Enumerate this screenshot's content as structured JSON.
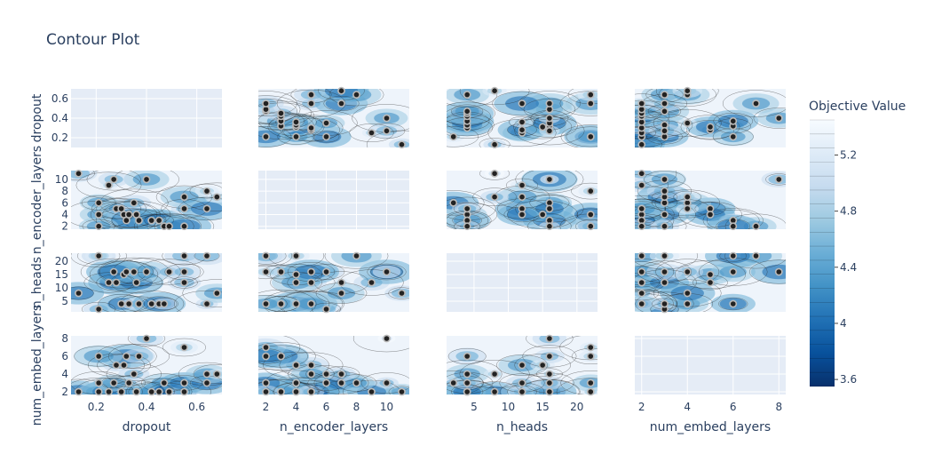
{
  "chart_data": {
    "type": "contour",
    "title": "Contour Plot",
    "colorbar": {
      "title": "Objective Value",
      "range": [
        3.55,
        5.45
      ],
      "ticks": [
        3.6,
        4,
        4.4,
        4.8,
        5.2
      ],
      "tick_labels": [
        "3.6",
        "4",
        "4.4",
        "4.8",
        "5.2"
      ],
      "colorscale": [
        "#08306b",
        "#08519c",
        "#2171b5",
        "#4292c6",
        "#6baed6",
        "#9ecae1",
        "#c6dbef",
        "#deebf7",
        "#f7fbff"
      ]
    },
    "params": [
      {
        "name": "dropout",
        "range": [
          0.1,
          0.7
        ],
        "ticks": [
          0.2,
          0.4,
          0.6
        ],
        "tick_labels": [
          "0.2",
          "0.4",
          "0.6"
        ],
        "y_ticks": [
          0.2,
          0.4,
          0.6
        ],
        "y_tick_labels": [
          "0.2",
          "0.4",
          "0.6"
        ]
      },
      {
        "name": "n_encoder_layers",
        "range": [
          1.5,
          11.5
        ],
        "ticks": [
          2,
          4,
          6,
          8,
          10
        ],
        "tick_labels": [
          "2",
          "4",
          "6",
          "8",
          "10"
        ],
        "y_ticks": [
          2,
          4,
          6,
          8,
          10
        ],
        "y_tick_labels": [
          "2",
          "4",
          "6",
          "8",
          "10"
        ]
      },
      {
        "name": "n_heads",
        "range": [
          1,
          23
        ],
        "ticks": [
          5,
          10,
          15,
          20
        ],
        "tick_labels": [
          "5",
          "10",
          "15",
          "20"
        ],
        "y_ticks": [
          5,
          10,
          15,
          20
        ],
        "y_tick_labels": [
          "5",
          "10",
          "15",
          "20"
        ]
      },
      {
        "name": "num_embed_layers",
        "range": [
          1.7,
          8.3
        ],
        "ticks": [
          2,
          4,
          6,
          8
        ],
        "tick_labels": [
          "2",
          "4",
          "6",
          "8"
        ],
        "y_ticks": [
          2,
          4,
          6,
          8
        ],
        "y_tick_labels": [
          "2",
          "4",
          "6",
          "8"
        ]
      }
    ],
    "trials": [
      {
        "dropout": 0.13,
        "n_encoder_layers": 11,
        "n_heads": 8,
        "num_embed_layers": 2
      },
      {
        "dropout": 0.21,
        "n_encoder_layers": 6,
        "n_heads": 2,
        "num_embed_layers": 3
      },
      {
        "dropout": 0.21,
        "n_encoder_layers": 4,
        "n_heads": 22,
        "num_embed_layers": 2
      },
      {
        "dropout": 0.25,
        "n_encoder_layers": 9,
        "n_heads": 12,
        "num_embed_layers": 2
      },
      {
        "dropout": 0.28,
        "n_encoder_layers": 5,
        "n_heads": 12,
        "num_embed_layers": 5
      },
      {
        "dropout": 0.3,
        "n_encoder_layers": 5,
        "n_heads": 4,
        "num_embed_layers": 2
      },
      {
        "dropout": 0.31,
        "n_encoder_layers": 4,
        "n_heads": 15,
        "num_embed_layers": 5
      },
      {
        "dropout": 0.32,
        "n_encoder_layers": 3,
        "n_heads": 16,
        "num_embed_layers": 6
      },
      {
        "dropout": 0.33,
        "n_encoder_layers": 4,
        "n_heads": 4,
        "num_embed_layers": 3
      },
      {
        "dropout": 0.35,
        "n_encoder_layers": 6,
        "n_heads": 16,
        "num_embed_layers": 4
      },
      {
        "dropout": 0.36,
        "n_encoder_layers": 4,
        "n_heads": 12,
        "num_embed_layers": 2
      },
      {
        "dropout": 0.37,
        "n_encoder_layers": 3,
        "n_heads": 4,
        "num_embed_layers": 6
      },
      {
        "dropout": 0.4,
        "n_encoder_layers": 10,
        "n_heads": 16,
        "num_embed_layers": 8
      },
      {
        "dropout": 0.42,
        "n_encoder_layers": 3,
        "n_heads": 4,
        "num_embed_layers": 2
      },
      {
        "dropout": 0.45,
        "n_encoder_layers": 3,
        "n_heads": 4,
        "num_embed_layers": 2
      },
      {
        "dropout": 0.47,
        "n_encoder_layers": 2,
        "n_heads": 4,
        "num_embed_layers": 3
      },
      {
        "dropout": 0.49,
        "n_encoder_layers": 2,
        "n_heads": 16,
        "num_embed_layers": 2
      },
      {
        "dropout": 0.55,
        "n_encoder_layers": 2,
        "n_heads": 22,
        "num_embed_layers": 7
      },
      {
        "dropout": 0.55,
        "n_encoder_layers": 5,
        "n_heads": 16,
        "num_embed_layers": 2
      },
      {
        "dropout": 0.55,
        "n_encoder_layers": 7,
        "n_heads": 12,
        "num_embed_layers": 3
      },
      {
        "dropout": 0.64,
        "n_encoder_layers": 8,
        "n_heads": 22,
        "num_embed_layers": 3
      },
      {
        "dropout": 0.64,
        "n_encoder_layers": 5,
        "n_heads": 4,
        "num_embed_layers": 4
      },
      {
        "dropout": 0.68,
        "n_encoder_layers": 7,
        "n_heads": 8,
        "num_embed_layers": 4
      },
      {
        "dropout": 0.27,
        "n_encoder_layers": 10,
        "n_heads": 16,
        "num_embed_layers": 3
      },
      {
        "dropout": 0.21,
        "n_encoder_layers": 2,
        "n_heads": 22,
        "num_embed_layers": 6
      }
    ]
  }
}
